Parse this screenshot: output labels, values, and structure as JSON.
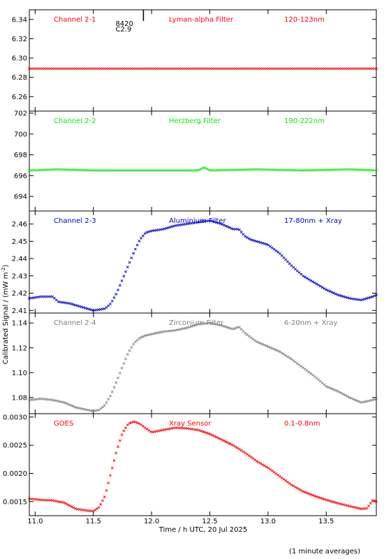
{
  "chart_data": {
    "type": "scatter",
    "xlabel": "Time / h UTC, 20 Jul 2025",
    "ylabel": "Calibrated Signal / (mW m",
    "ylabel_sup": "-2",
    "ylabel_close": ")",
    "footnote": "(1 minute averages)",
    "xlim": [
      10.95,
      13.93
    ],
    "xticks": [
      11.0,
      11.5,
      12.0,
      12.5,
      13.0,
      13.5
    ],
    "xtick_labels": [
      "11.0",
      "11.5",
      "12.0",
      "12.5",
      "13.0",
      "13.5"
    ],
    "marker": {
      "x": 11.93,
      "label1": "8420",
      "label2": "C2.9"
    },
    "panels": [
      {
        "name": "Channel 2-1",
        "filter": "Lyman-alpha Filter",
        "range": "120-123nm",
        "color": "#ff0000",
        "ylim": [
          6.245,
          6.35
        ],
        "yticks": [
          6.26,
          6.28,
          6.3,
          6.32,
          6.34
        ],
        "ytick_labels": [
          "6.26",
          "6.28",
          "6.30",
          "6.32",
          "6.34"
        ],
        "x": [
          10.95,
          13.93
        ],
        "y": [
          6.289,
          6.289
        ]
      },
      {
        "name": "Channel 2-2",
        "filter": "Herzberg Filter",
        "range": "190-222nm",
        "color": "#00ee00",
        "ylim": [
          692.6,
          702.2
        ],
        "yticks": [
          694,
          696,
          698,
          700,
          702
        ],
        "ytick_labels": [
          "694",
          "696",
          "698",
          "700",
          "702"
        ],
        "x": [
          10.95,
          11.2,
          11.5,
          12.0,
          12.4,
          12.45,
          12.5,
          12.9,
          13.3,
          13.7,
          13.93
        ],
        "y": [
          696.5,
          696.6,
          696.5,
          696.5,
          696.5,
          696.8,
          696.5,
          696.6,
          696.5,
          696.6,
          696.5
        ]
      },
      {
        "name": "Channel 2-3",
        "filter": "Aluminium Filter",
        "range": "17-80nm + Xray",
        "color": "#0000cc",
        "ylim": [
          2.4085,
          2.4675
        ],
        "yticks": [
          2.41,
          2.42,
          2.43,
          2.44,
          2.45,
          2.46
        ],
        "ytick_labels": [
          "2.41",
          "2.42",
          "2.43",
          "2.44",
          "2.45",
          "2.46"
        ],
        "x": [
          10.95,
          11.05,
          11.15,
          11.2,
          11.3,
          11.4,
          11.5,
          11.6,
          11.65,
          11.7,
          11.75,
          11.8,
          11.85,
          11.9,
          11.95,
          12.0,
          12.1,
          12.2,
          12.3,
          12.4,
          12.5,
          12.6,
          12.7,
          12.75,
          12.8,
          12.85,
          12.9,
          13.0,
          13.1,
          13.2,
          13.3,
          13.4,
          13.5,
          13.6,
          13.7,
          13.8,
          13.9,
          13.93
        ],
        "y": [
          2.417,
          2.418,
          2.418,
          2.415,
          2.414,
          2.412,
          2.41,
          2.411,
          2.414,
          2.42,
          2.428,
          2.436,
          2.444,
          2.451,
          2.455,
          2.456,
          2.457,
          2.459,
          2.46,
          2.461,
          2.462,
          2.46,
          2.457,
          2.457,
          2.453,
          2.451,
          2.45,
          2.448,
          2.443,
          2.436,
          2.43,
          2.426,
          2.422,
          2.419,
          2.417,
          2.416,
          2.418,
          2.419
        ]
      },
      {
        "name": "Channel 2-4",
        "filter": "Zirconium Filter",
        "range": "6-20nm + Xray",
        "color": "#808080",
        "ylim": [
          1.067,
          1.148
        ],
        "yticks": [
          1.08,
          1.1,
          1.12,
          1.14
        ],
        "ytick_labels": [
          "1.08",
          "1.10",
          "1.12",
          "1.14"
        ],
        "x": [
          10.95,
          11.05,
          11.15,
          11.25,
          11.35,
          11.45,
          11.5,
          11.55,
          11.6,
          11.65,
          11.7,
          11.75,
          11.8,
          11.85,
          11.9,
          11.95,
          12.0,
          12.1,
          12.2,
          12.3,
          12.4,
          12.5,
          12.6,
          12.7,
          12.75,
          12.8,
          12.9,
          13.0,
          13.1,
          13.2,
          13.3,
          13.4,
          13.5,
          13.6,
          13.7,
          13.8,
          13.9,
          13.93
        ],
        "y": [
          1.078,
          1.079,
          1.078,
          1.076,
          1.072,
          1.07,
          1.069,
          1.07,
          1.074,
          1.082,
          1.093,
          1.105,
          1.116,
          1.124,
          1.128,
          1.13,
          1.131,
          1.133,
          1.134,
          1.136,
          1.139,
          1.14,
          1.138,
          1.135,
          1.137,
          1.132,
          1.125,
          1.121,
          1.117,
          1.111,
          1.104,
          1.097,
          1.089,
          1.085,
          1.08,
          1.076,
          1.078,
          1.079
        ]
      },
      {
        "name": "GOES",
        "filter": "Xray Sensor",
        "range": "0.1-0.8nm",
        "color": "#ff0000",
        "ylim": [
          0.00125,
          0.00306
        ],
        "yticks": [
          0.0015,
          0.002,
          0.0025,
          0.003
        ],
        "ytick_labels": [
          "0.0015",
          "0.0020",
          "0.0025",
          "0.0030"
        ],
        "x": [
          10.95,
          11.05,
          11.15,
          11.25,
          11.35,
          11.45,
          11.5,
          11.55,
          11.6,
          11.65,
          11.7,
          11.75,
          11.8,
          11.85,
          11.9,
          11.95,
          12.0,
          12.05,
          12.1,
          12.2,
          12.3,
          12.4,
          12.5,
          12.6,
          12.7,
          12.8,
          12.9,
          13.0,
          13.1,
          13.2,
          13.3,
          13.4,
          13.5,
          13.6,
          13.7,
          13.8,
          13.85,
          13.9,
          13.93
        ],
        "y": [
          0.00155,
          0.00153,
          0.00152,
          0.00148,
          0.00137,
          0.00134,
          0.00133,
          0.0014,
          0.0016,
          0.002,
          0.0024,
          0.00272,
          0.00288,
          0.00292,
          0.00288,
          0.0028,
          0.00273,
          0.00275,
          0.00277,
          0.00281,
          0.0028,
          0.00277,
          0.0027,
          0.0026,
          0.0025,
          0.00237,
          0.00222,
          0.0021,
          0.00195,
          0.0018,
          0.00168,
          0.0016,
          0.00153,
          0.00147,
          0.00142,
          0.00137,
          0.00138,
          0.00153,
          0.0015
        ]
      }
    ]
  }
}
